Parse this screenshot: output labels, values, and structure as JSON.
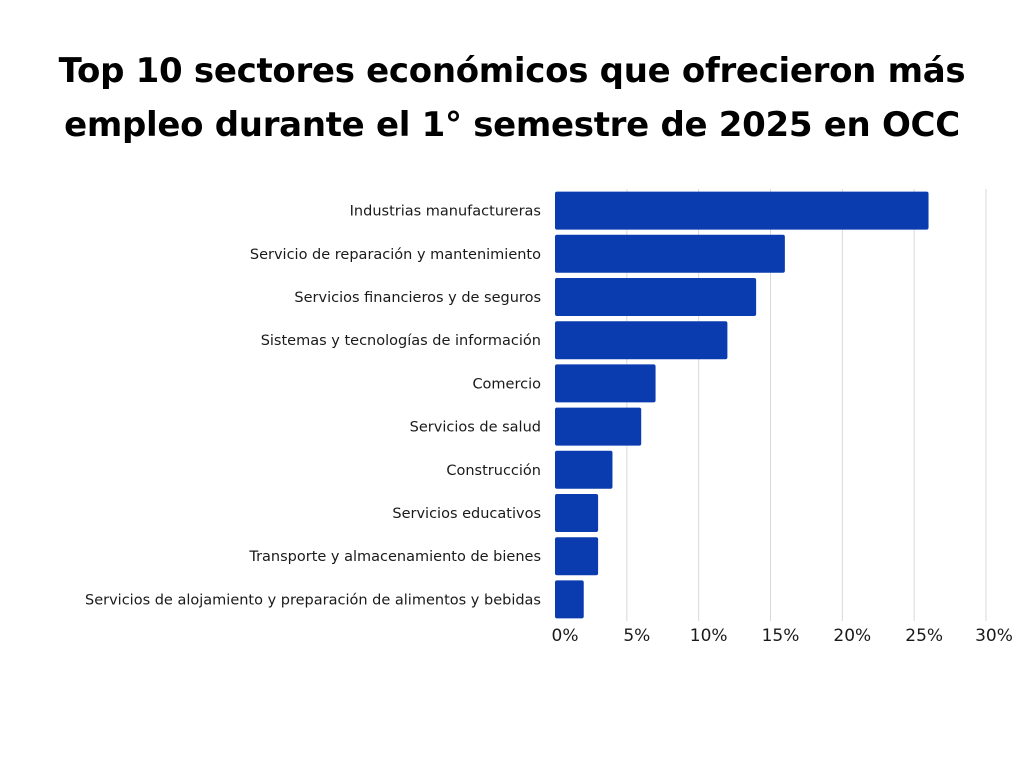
{
  "title_line1": "Top 10 sectores económicos que ofrecieron más",
  "title_line2": "empleo durante el 1° semestre de 2025 en OCC",
  "chart_data": {
    "type": "bar",
    "orientation": "horizontal",
    "title": "Top 10 sectores económicos que ofrecieron más empleo durante el 1° semestre de 2025 en OCC",
    "categories": [
      "Industrias manufactureras",
      "Servicio de reparación y mantenimiento",
      "Servicios financieros y de seguros",
      "Sistemas y tecnologías de información",
      "Comercio",
      "Servicios de salud",
      "Construcción",
      "Servicios educativos",
      "Transporte y almacenamiento de bienes",
      "Servicios de alojamiento y preparación de alimentos y bebidas"
    ],
    "values": [
      26,
      16,
      14,
      12,
      7,
      6,
      4,
      3,
      3,
      2
    ],
    "xlim": [
      0,
      30
    ],
    "xticks": [
      0,
      5,
      10,
      15,
      20,
      25,
      30
    ],
    "xtick_labels": [
      "0%",
      "5%",
      "10%",
      "15%",
      "20%",
      "25%",
      "30%"
    ],
    "xlabel": "",
    "ylabel": "",
    "grid": "vertical",
    "legend": "none",
    "bar_color": "#0a3cb0",
    "grid_color": "#d9d9d9"
  }
}
